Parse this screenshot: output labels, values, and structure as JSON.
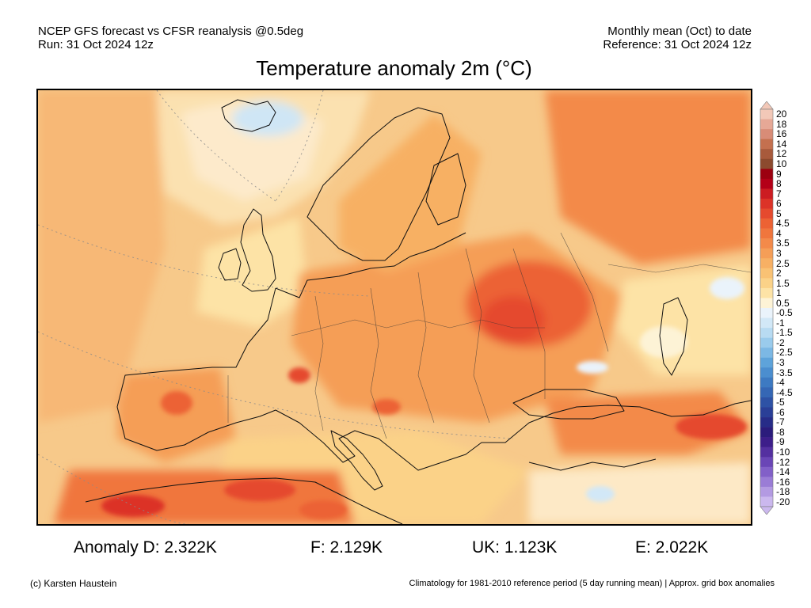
{
  "header": {
    "left_line1": "NCEP GFS forecast vs CFSR reanalysis @0.5deg",
    "left_line2": "Run: 31 Oct 2024 12z",
    "right_line1": "Monthly mean (Oct) to date",
    "right_line2": "Reference: 31 Oct 2024 12z"
  },
  "title": "Temperature anomaly 2m (°C)",
  "colorbar": {
    "labels": [
      "20",
      "18",
      "16",
      "14",
      "12",
      "10",
      "9",
      "8",
      "7",
      "6",
      "5",
      "4.5",
      "4",
      "3.5",
      "3",
      "2.5",
      "2",
      "1.5",
      "1",
      "0.5",
      "-0.5",
      "-1",
      "-1.5",
      "-2",
      "-2.5",
      "-3",
      "-3.5",
      "-4",
      "-4.5",
      "-5",
      "-6",
      "-7",
      "-8",
      "-9",
      "-10",
      "-12",
      "-14",
      "-16",
      "-18",
      "-20"
    ],
    "colors": [
      "#f2c8b8",
      "#e6a896",
      "#d88c77",
      "#c4704f",
      "#a85a3c",
      "#8c4a2e",
      "#9c0010",
      "#b40018",
      "#cc1c22",
      "#dc3328",
      "#e54a2e",
      "#ec6234",
      "#f0763d",
      "#f38a4a",
      "#f59e57",
      "#f7b064",
      "#f9c274",
      "#fbd288",
      "#fde3a6",
      "#fdf3d6",
      "#eaf3fb",
      "#d2e8f7",
      "#b8dbf2",
      "#9acbec",
      "#7cb8e4",
      "#5ea3da",
      "#4b8ecf",
      "#3d7ac2",
      "#3567b5",
      "#2e52a5",
      "#2a3f97",
      "#272c88",
      "#2b1c7c",
      "#3d1e8a",
      "#5430a0",
      "#6a46b6",
      "#8260c8",
      "#9a7cd6",
      "#b39ae2",
      "#cbb8ee"
    ]
  },
  "stats": {
    "d": "Anomaly D: 2.322K",
    "f": "F: 2.129K",
    "uk": "UK: 1.123K",
    "e": "E: 2.022K"
  },
  "footer": {
    "credit": "(c) Karsten Haustein",
    "climatology": "Climatology for 1981-2010 reference period (5 day running mean) | Approx. grid box anomalies"
  }
}
